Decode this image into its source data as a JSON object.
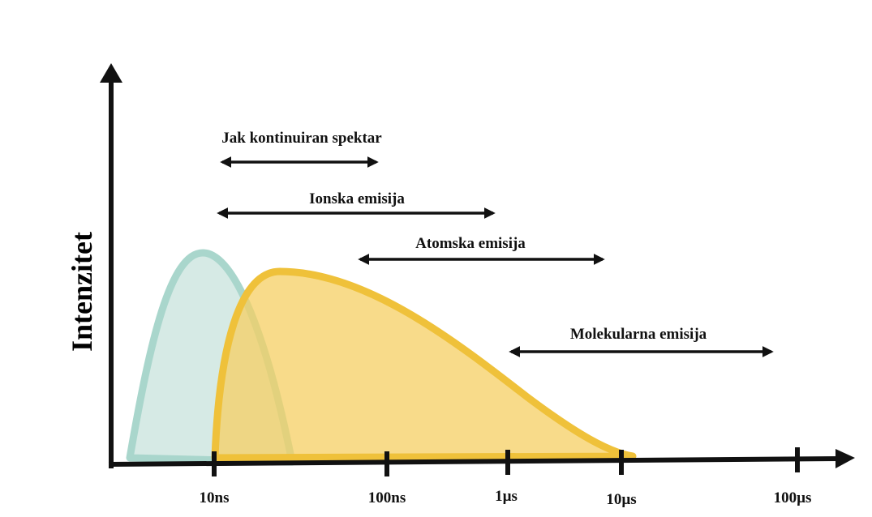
{
  "y_axis": {
    "label": "Intenzitet"
  },
  "x_axis": {
    "ticks": [
      "10ns",
      "100ns",
      "1µs",
      "10µs",
      "100µs"
    ]
  },
  "ranges": [
    {
      "label": "Jak kontinuiran spektar"
    },
    {
      "label": "Ionska emisija"
    },
    {
      "label": "Atomska emisija"
    },
    {
      "label": "Molekularna emisija"
    }
  ]
}
